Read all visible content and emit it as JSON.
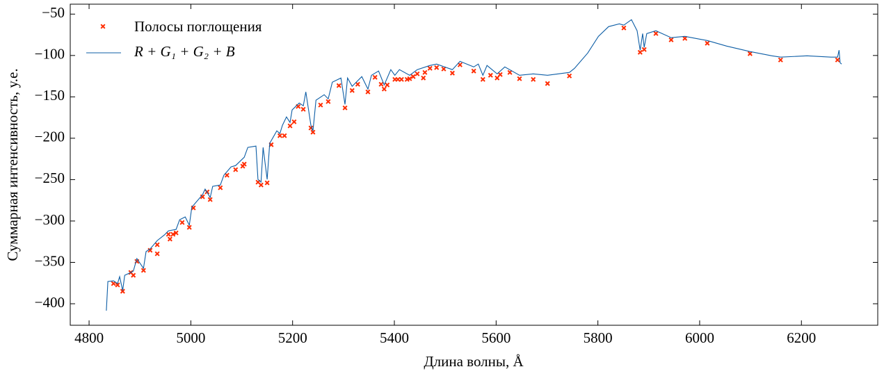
{
  "chart_data": {
    "type": "line",
    "xlabel": "Длина волны,  Å",
    "ylabel": "Суммарная интенсивность, у.е.",
    "xlim": [
      4763,
      6350
    ],
    "ylim": [
      -426,
      -38
    ],
    "xticks": [
      4800,
      5000,
      5200,
      5400,
      5600,
      5800,
      6000,
      6200
    ],
    "yticks": [
      {
        "value": -400,
        "label": "−400"
      },
      {
        "value": -350,
        "label": "−350"
      },
      {
        "value": -300,
        "label": "−300"
      },
      {
        "value": -250,
        "label": "−250"
      },
      {
        "value": -200,
        "label": "−200"
      },
      {
        "value": -150,
        "label": "−150"
      },
      {
        "value": -100,
        "label": "−100"
      },
      {
        "value": -50,
        "label": "−50"
      }
    ],
    "legend": "upper left",
    "series": [
      {
        "name": "Полосы поглощения",
        "type": "scatter",
        "color": "#ff2c00",
        "x": [
          4848,
          4856,
          4866,
          4882,
          4887,
          4894,
          4907,
          4920,
          4934,
          4934,
          4956,
          4959,
          4965,
          4971,
          4983,
          4997,
          5005,
          5023,
          5032,
          5038,
          5058,
          5071,
          5088,
          5102,
          5105,
          5132,
          5138,
          5150,
          5158,
          5175,
          5184,
          5195,
          5203,
          5211,
          5221,
          5236,
          5240,
          5255,
          5270,
          5291,
          5303,
          5317,
          5328,
          5348,
          5362,
          5374,
          5380,
          5386,
          5401,
          5407,
          5414,
          5425,
          5430,
          5437,
          5445,
          5457,
          5460,
          5470,
          5483,
          5497,
          5514,
          5529,
          5556,
          5574,
          5589,
          5602,
          5608,
          5627,
          5646,
          5673,
          5701,
          5744,
          5851,
          5883,
          5891,
          5914,
          5944,
          5971,
          6015,
          6099,
          6159,
          6271
        ],
        "y": [
          -375.6,
          -377.3,
          -384.9,
          -362.2,
          -365.6,
          -348.8,
          -359.7,
          -335.4,
          -328.7,
          -339.6,
          -316.1,
          -321.9,
          -316.1,
          -314.4,
          -301.8,
          -307.7,
          -284.2,
          -270.7,
          -264.9,
          -274.1,
          -259.8,
          -244.7,
          -238.0,
          -233.8,
          -231.3,
          -253.1,
          -256.5,
          -253.9,
          -207.8,
          -196.9,
          -196.9,
          -185.1,
          -180.1,
          -161.6,
          -165.0,
          -187.6,
          -192.7,
          -159.9,
          -155.7,
          -136.4,
          -163.3,
          -142.3,
          -134.8,
          -144.0,
          -126.4,
          -134.8,
          -140.6,
          -135.6,
          -128.9,
          -128.9,
          -128.9,
          -128.9,
          -128.1,
          -125.5,
          -122.2,
          -127.2,
          -120.5,
          -115.5,
          -114.6,
          -116.3,
          -121.3,
          -111.3,
          -118.8,
          -128.9,
          -123.9,
          -127.2,
          -123.0,
          -120.5,
          -128.1,
          -128.9,
          -133.9,
          -124.7,
          -66.8,
          -96.2,
          -92.8,
          -73.5,
          -81.1,
          -79.4,
          -85.2,
          -97.8,
          -105.4,
          -105.4
        ]
      },
      {
        "name": "R + G₁ + G₂ + B",
        "type": "line",
        "color": "#0c5da5",
        "x": [
          4834,
          4837,
          4848,
          4856,
          4860,
          4866,
          4870,
          4882,
          4887,
          4894,
          4907,
          4912,
          4920,
          4934,
          4948,
          4956,
          4971,
          4978,
          4989,
          4997,
          5002,
          5023,
          5028,
          5038,
          5043,
          5058,
          5065,
          5079,
          5088,
          5105,
          5112,
          5128,
          5132,
          5138,
          5142,
          5150,
          5155,
          5169,
          5175,
          5180,
          5188,
          5195,
          5199,
          5213,
          5221,
          5226,
          5236,
          5240,
          5246,
          5262,
          5270,
          5278,
          5295,
          5303,
          5308,
          5317,
          5336,
          5348,
          5355,
          5369,
          5380,
          5393,
          5401,
          5410,
          5430,
          5445,
          5470,
          5483,
          5514,
          5529,
          5556,
          5565,
          5574,
          5582,
          5602,
          5617,
          5646,
          5673,
          5701,
          5744,
          5754,
          5780,
          5801,
          5821,
          5842,
          5851,
          5866,
          5877,
          5883,
          5888,
          5891,
          5896,
          5914,
          5944,
          5971,
          5999,
          6015,
          6053,
          6099,
          6142,
          6159,
          6211,
          6258,
          6271,
          6274,
          6276,
          6279
        ],
        "y": [
          -408.4,
          -373.1,
          -372.3,
          -375.6,
          -367.3,
          -384.0,
          -365.6,
          -362.2,
          -360.5,
          -345.4,
          -357.2,
          -337.0,
          -333.7,
          -323.6,
          -316.9,
          -311.9,
          -310.2,
          -298.4,
          -295.1,
          -305.1,
          -283.3,
          -268.2,
          -261.5,
          -271.6,
          -258.1,
          -256.5,
          -244.7,
          -234.6,
          -233.0,
          -222.9,
          -211.1,
          -209.5,
          -249.7,
          -253.1,
          -211.1,
          -249.7,
          -206.1,
          -191.0,
          -194.4,
          -184.3,
          -174.2,
          -180.9,
          -165.8,
          -157.4,
          -160.8,
          -144.0,
          -184.3,
          -191.0,
          -154.1,
          -147.4,
          -152.4,
          -132.3,
          -127.2,
          -159.1,
          -127.2,
          -137.3,
          -125.5,
          -140.6,
          -123.9,
          -118.8,
          -135.6,
          -117.1,
          -123.9,
          -117.1,
          -123.9,
          -117.1,
          -112.1,
          -110.4,
          -117.1,
          -107.1,
          -113.8,
          -110.4,
          -123.9,
          -112.1,
          -122.2,
          -113.8,
          -123.9,
          -122.2,
          -123.9,
          -120.5,
          -115.5,
          -97.0,
          -76.9,
          -65.1,
          -61.8,
          -63.4,
          -56.7,
          -70.1,
          -93.6,
          -73.5,
          -90.3,
          -73.5,
          -70.1,
          -78.5,
          -76.9,
          -80.2,
          -81.9,
          -88.6,
          -95.3,
          -100.4,
          -102.0,
          -100.4,
          -102.0,
          -102.0,
          -93.6,
          -108.8,
          -110.4
        ]
      }
    ]
  }
}
